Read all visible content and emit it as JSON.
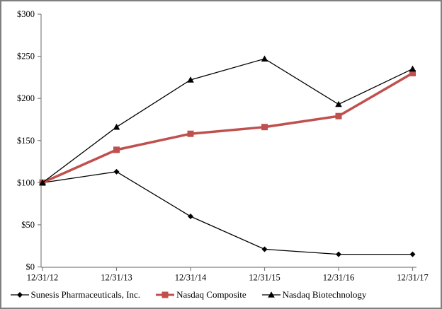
{
  "chart_data": {
    "type": "line",
    "title": "",
    "categories": [
      "12/31/12",
      "12/31/13",
      "12/31/14",
      "12/31/15",
      "12/31/16",
      "12/31/17"
    ],
    "y_ticks": [
      {
        "label": "$300",
        "value": 300
      },
      {
        "label": "$250",
        "value": 250
      },
      {
        "label": "$200",
        "value": 200
      },
      {
        "label": "$150",
        "value": 150
      },
      {
        "label": "$100",
        "value": 100
      },
      {
        "label": "$50",
        "value": 50
      },
      {
        "label": "$0",
        "value": 0
      }
    ],
    "ylim": [
      0,
      300
    ],
    "grid": false,
    "legend_position": "bottom",
    "series": [
      {
        "name": "Sunesis Pharmaceuticals, Inc.",
        "marker": "diamond",
        "color": "#000000",
        "line_width": 1.3,
        "values": [
          100,
          113,
          60,
          21,
          15,
          15
        ]
      },
      {
        "name": "Nasdaq Composite",
        "marker": "square",
        "color": "#C0504D",
        "line_width": 3.5,
        "values": [
          100,
          139,
          158,
          166,
          179,
          230
        ]
      },
      {
        "name": "Nasdaq Biotechnology",
        "marker": "triangle",
        "color": "#000000",
        "line_width": 1.3,
        "values": [
          100,
          166,
          222,
          247,
          193,
          235
        ]
      }
    ]
  },
  "colors": {
    "accent_red": "#C0504D",
    "axis_line": "#808080",
    "frame_border": "#7F7F7F",
    "text": "#000000"
  }
}
